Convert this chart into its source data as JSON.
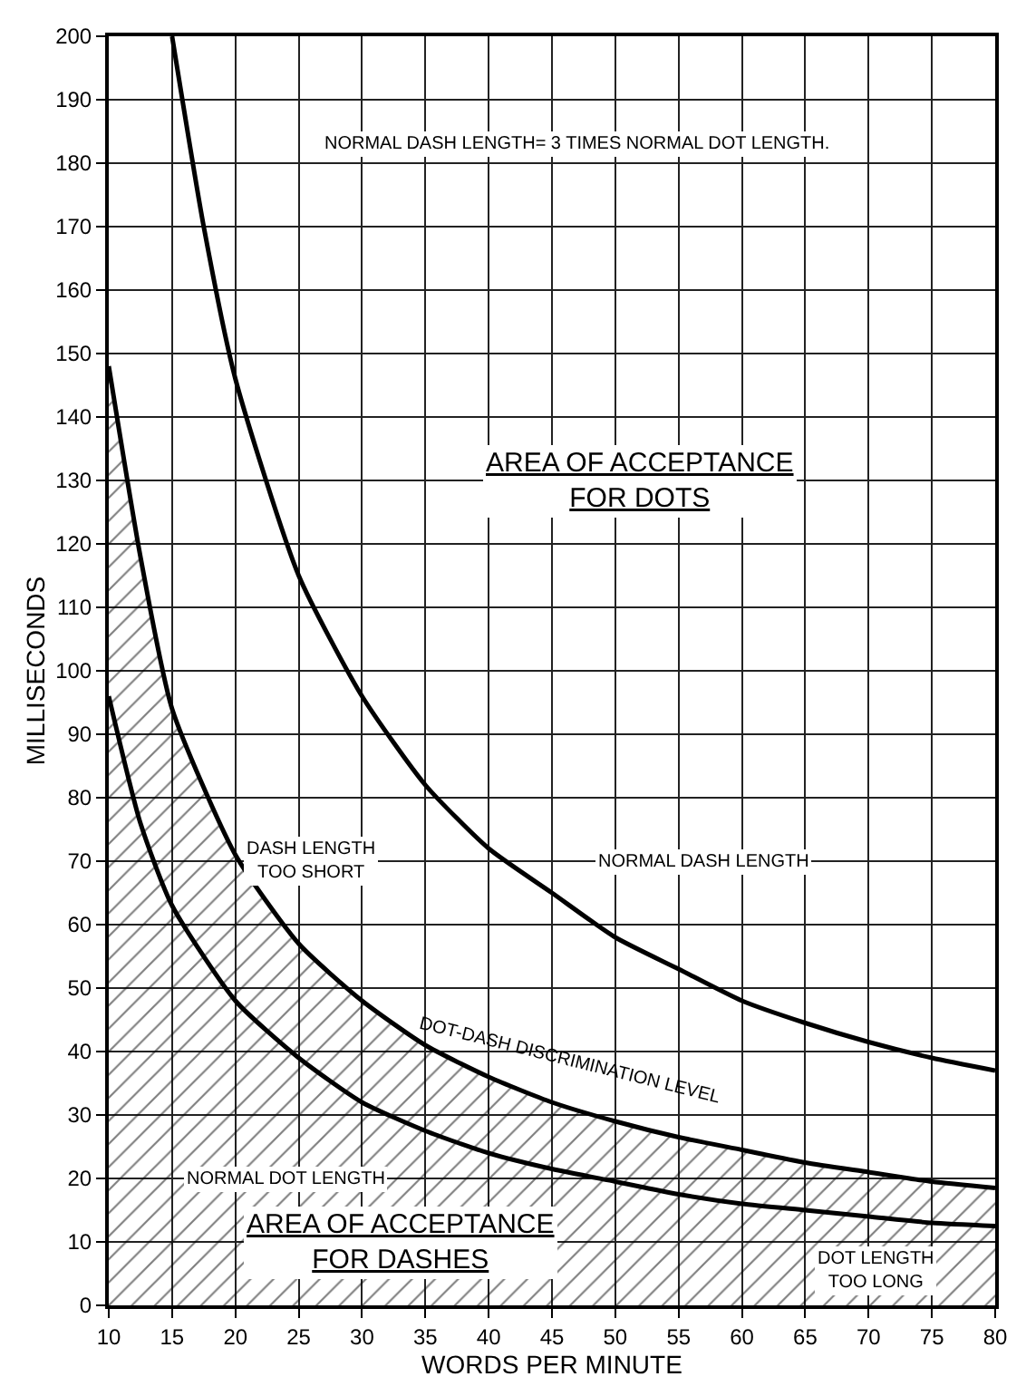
{
  "chart_data": {
    "type": "line",
    "xlabel": "WORDS PER MINUTE",
    "ylabel": "MILLISECONDS",
    "xlim": [
      10,
      80
    ],
    "xticks": [
      10,
      15,
      20,
      25,
      30,
      35,
      40,
      45,
      50,
      55,
      60,
      65,
      70,
      75,
      80
    ],
    "ylim": [
      0,
      200
    ],
    "yticks": [
      0,
      10,
      20,
      30,
      40,
      50,
      60,
      70,
      80,
      90,
      100,
      110,
      120,
      130,
      140,
      150,
      160,
      170,
      180,
      190,
      200
    ],
    "grid": true,
    "legend": false,
    "marker": "none",
    "line_style": "solid",
    "series": [
      {
        "name": "NORMAL DASH LENGTH",
        "color": "#000000",
        "x": [
          15,
          17.5,
          20,
          25,
          30,
          35,
          40,
          45,
          50,
          55,
          60,
          65,
          70,
          75,
          80
        ],
        "values": [
          200,
          170,
          146,
          115,
          96,
          82,
          72,
          65,
          58,
          53,
          48,
          44.5,
          41.5,
          39,
          37
        ]
      },
      {
        "name": "DOT-DASH DISCRIMINATION LEVEL",
        "type": "area",
        "color": "#000000",
        "x": [
          10,
          12.5,
          15,
          20,
          25,
          30,
          35,
          40,
          45,
          50,
          55,
          60,
          65,
          70,
          75,
          80
        ],
        "values": [
          148,
          118,
          94,
          71,
          57,
          48,
          41,
          36,
          32,
          29,
          26.5,
          24.5,
          22.5,
          21,
          19.5,
          18.5
        ]
      },
      {
        "name": "NORMAL DOT LENGTH",
        "color": "#000000",
        "x": [
          10,
          12.5,
          15,
          20,
          25,
          30,
          35,
          40,
          45,
          50,
          55,
          60,
          65,
          70,
          75,
          80
        ],
        "values": [
          96,
          76,
          63,
          48,
          39,
          32,
          27.5,
          24,
          21.5,
          19.5,
          17.5,
          16,
          15,
          14,
          13,
          12.5
        ]
      }
    ],
    "annotations": [
      "NORMAL DASH LENGTH= 3 TIMES NORMAL DOT LENGTH.",
      "AREA OF ACCEPTANCE FOR DOTS",
      "AREA OF ACCEPTANCE FOR DASHES",
      "DASH LENGTH TOO SHORT",
      "DOT LENGTH TOO LONG"
    ]
  }
}
